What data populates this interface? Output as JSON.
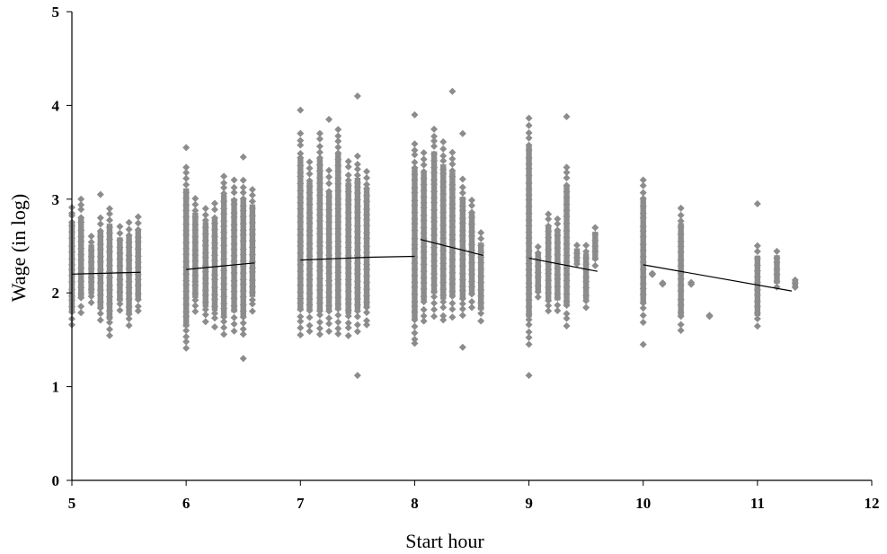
{
  "chart_data": {
    "type": "scatter",
    "title": "",
    "xlabel": "Start hour",
    "ylabel": "Wage (in log)",
    "xlim": [
      5,
      12
    ],
    "ylim": [
      0,
      5
    ],
    "x_ticks": [
      "5",
      "6",
      "7",
      "8",
      "9",
      "10",
      "11",
      "12"
    ],
    "y_ticks": [
      "0",
      "1",
      "2",
      "3",
      "4",
      "5"
    ],
    "grid": false,
    "legend": "none",
    "marker": "diamond",
    "point_color": "#8c8c8c",
    "line_color": "#000000",
    "columns": [
      {
        "x": 5.0,
        "min": 1.65,
        "max": 2.9,
        "outliers": [
          2.85
        ]
      },
      {
        "x": 5.08,
        "min": 1.8,
        "max": 2.95,
        "outliers": [
          3.0
        ]
      },
      {
        "x": 5.17,
        "min": 1.9,
        "max": 2.6,
        "outliers": []
      },
      {
        "x": 5.25,
        "min": 1.7,
        "max": 2.8,
        "outliers": [
          3.05
        ]
      },
      {
        "x": 5.33,
        "min": 1.55,
        "max": 2.9,
        "outliers": []
      },
      {
        "x": 5.42,
        "min": 1.8,
        "max": 2.7,
        "outliers": []
      },
      {
        "x": 5.5,
        "min": 1.65,
        "max": 2.75,
        "outliers": []
      },
      {
        "x": 5.58,
        "min": 1.8,
        "max": 2.8,
        "outliers": []
      },
      {
        "x": 6.0,
        "min": 1.4,
        "max": 3.35,
        "outliers": [
          3.55
        ]
      },
      {
        "x": 6.08,
        "min": 1.8,
        "max": 3.0,
        "outliers": []
      },
      {
        "x": 6.17,
        "min": 1.7,
        "max": 2.9,
        "outliers": []
      },
      {
        "x": 6.25,
        "min": 1.65,
        "max": 2.95,
        "outliers": []
      },
      {
        "x": 6.33,
        "min": 1.55,
        "max": 3.25,
        "outliers": []
      },
      {
        "x": 6.42,
        "min": 1.6,
        "max": 3.2,
        "outliers": []
      },
      {
        "x": 6.5,
        "min": 1.55,
        "max": 3.2,
        "outliers": [
          3.45,
          1.3
        ]
      },
      {
        "x": 6.58,
        "min": 1.8,
        "max": 3.1,
        "outliers": []
      },
      {
        "x": 7.0,
        "min": 1.55,
        "max": 3.7,
        "outliers": [
          3.95
        ]
      },
      {
        "x": 7.08,
        "min": 1.6,
        "max": 3.4,
        "outliers": []
      },
      {
        "x": 7.17,
        "min": 1.55,
        "max": 3.7,
        "outliers": []
      },
      {
        "x": 7.25,
        "min": 1.6,
        "max": 3.3,
        "outliers": [
          3.85
        ]
      },
      {
        "x": 7.33,
        "min": 1.55,
        "max": 3.75,
        "outliers": []
      },
      {
        "x": 7.42,
        "min": 1.55,
        "max": 3.4,
        "outliers": []
      },
      {
        "x": 7.5,
        "min": 1.6,
        "max": 3.45,
        "outliers": [
          4.1,
          1.12
        ]
      },
      {
        "x": 7.58,
        "min": 1.65,
        "max": 3.3,
        "outliers": []
      },
      {
        "x": 8.0,
        "min": 1.45,
        "max": 3.6,
        "outliers": [
          3.9
        ]
      },
      {
        "x": 8.08,
        "min": 1.7,
        "max": 3.5,
        "outliers": []
      },
      {
        "x": 8.17,
        "min": 1.75,
        "max": 3.75,
        "outliers": []
      },
      {
        "x": 8.25,
        "min": 1.7,
        "max": 3.6,
        "outliers": []
      },
      {
        "x": 8.33,
        "min": 1.75,
        "max": 3.5,
        "outliers": [
          4.15
        ]
      },
      {
        "x": 8.42,
        "min": 1.75,
        "max": 3.2,
        "outliers": [
          3.7,
          1.42
        ]
      },
      {
        "x": 8.5,
        "min": 1.85,
        "max": 3.0,
        "outliers": []
      },
      {
        "x": 8.58,
        "min": 1.7,
        "max": 2.65,
        "outliers": []
      },
      {
        "x": 9.0,
        "min": 1.45,
        "max": 3.85,
        "outliers": [
          1.12
        ]
      },
      {
        "x": 9.08,
        "min": 1.95,
        "max": 2.5,
        "outliers": []
      },
      {
        "x": 9.17,
        "min": 1.8,
        "max": 2.85,
        "outliers": []
      },
      {
        "x": 9.25,
        "min": 1.8,
        "max": 2.8,
        "outliers": []
      },
      {
        "x": 9.33,
        "min": 1.65,
        "max": 3.35,
        "outliers": [
          3.88
        ]
      },
      {
        "x": 9.42,
        "min": 2.3,
        "max": 2.5,
        "outliers": []
      },
      {
        "x": 9.5,
        "min": 1.85,
        "max": 2.5,
        "outliers": []
      },
      {
        "x": 9.58,
        "min": 2.3,
        "max": 2.7,
        "outliers": []
      },
      {
        "x": 10.0,
        "min": 1.7,
        "max": 3.2,
        "outliers": [
          1.45
        ]
      },
      {
        "x": 10.08,
        "min": 2.2,
        "max": 2.2,
        "outliers": []
      },
      {
        "x": 10.17,
        "min": 2.1,
        "max": 2.1,
        "outliers": []
      },
      {
        "x": 10.33,
        "min": 1.6,
        "max": 2.9,
        "outliers": []
      },
      {
        "x": 10.42,
        "min": 2.1,
        "max": 2.1,
        "outliers": []
      },
      {
        "x": 10.58,
        "min": 1.75,
        "max": 1.75,
        "outliers": []
      },
      {
        "x": 11.0,
        "min": 1.65,
        "max": 2.5,
        "outliers": [
          2.95
        ]
      },
      {
        "x": 11.17,
        "min": 2.05,
        "max": 2.45,
        "outliers": []
      },
      {
        "x": 11.33,
        "min": 2.05,
        "max": 2.15,
        "outliers": []
      }
    ],
    "fit_lines": [
      {
        "x": [
          5.0,
          5.6
        ],
        "y": [
          2.2,
          2.22
        ]
      },
      {
        "x": [
          6.0,
          6.6
        ],
        "y": [
          2.25,
          2.32
        ]
      },
      {
        "x": [
          7.0,
          7.6
        ],
        "y": [
          2.35,
          2.38
        ]
      },
      {
        "x": [
          7.6,
          8.0
        ],
        "y": [
          2.38,
          2.39
        ]
      },
      {
        "x": [
          8.05,
          8.6
        ],
        "y": [
          2.57,
          2.4
        ]
      },
      {
        "x": [
          9.0,
          9.6
        ],
        "y": [
          2.37,
          2.23
        ]
      },
      {
        "x": [
          10.0,
          11.3
        ],
        "y": [
          2.3,
          2.02
        ]
      }
    ]
  }
}
